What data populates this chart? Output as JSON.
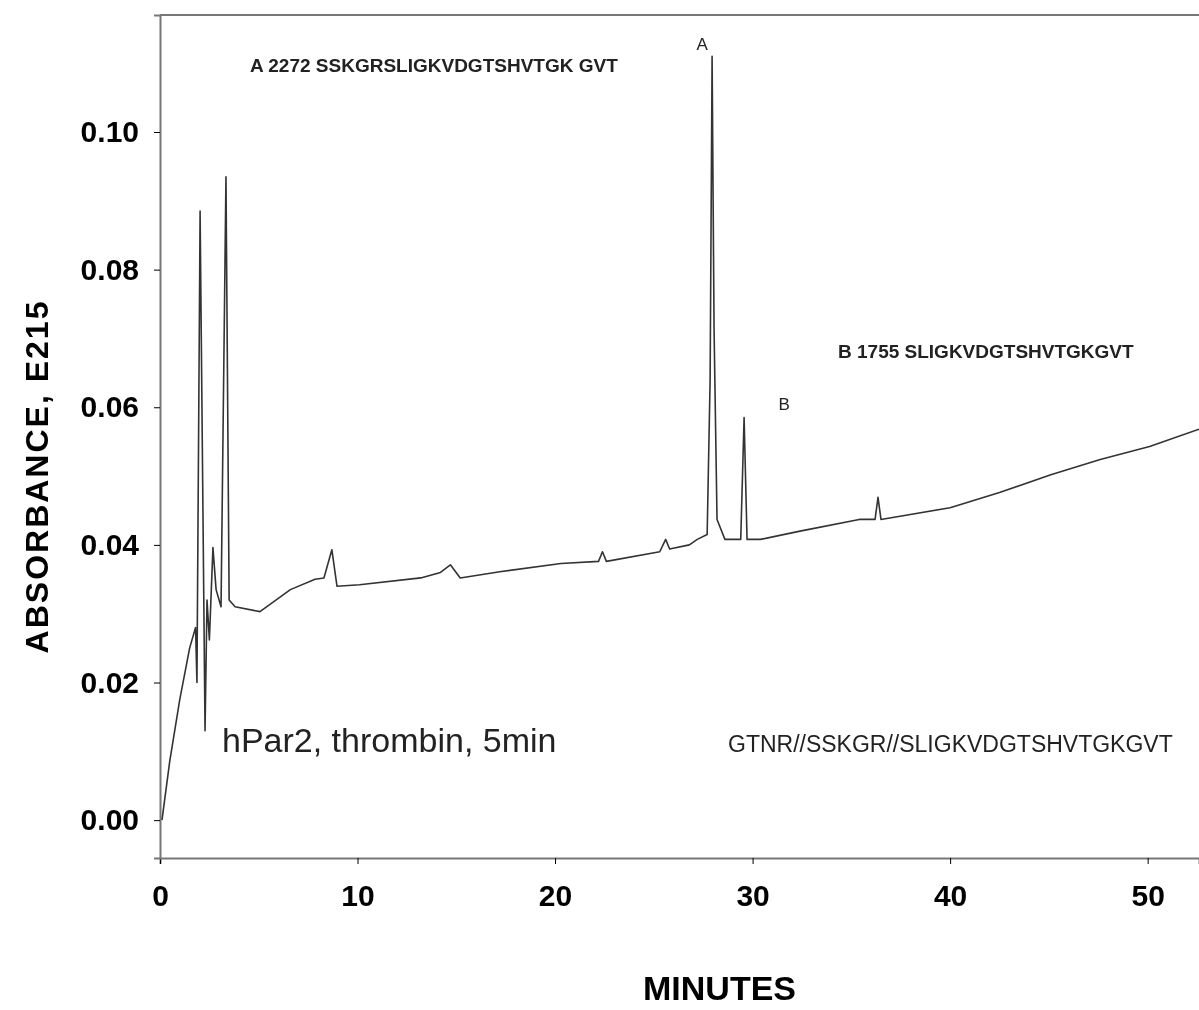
{
  "chart_data": {
    "type": "line",
    "xlabel": "MINUTES",
    "ylabel": "ABSORBANCE, E215",
    "xlim": [
      0,
      52.6
    ],
    "ylim": [
      -0.0055,
      0.117
    ],
    "xticks": [
      0,
      10,
      20,
      30,
      40,
      50
    ],
    "yticks": [
      {
        "value": 0,
        "label": "0.00"
      },
      {
        "value": 0.02,
        "label": "0.02"
      },
      {
        "value": 0.04,
        "label": "0.04"
      },
      {
        "value": 0.06,
        "label": "0.06"
      },
      {
        "value": 0.08,
        "label": "0.08"
      },
      {
        "value": 0.1,
        "label": "0.10"
      }
    ],
    "grid": false,
    "marker": "none",
    "line_style": "solid",
    "series": [
      {
        "color": "#333333",
        "x": [
          0.1,
          0.5,
          1.0,
          1.5,
          1.8,
          1.87,
          2.03,
          2.28,
          2.38,
          2.5,
          2.68,
          2.84,
          3.09,
          3.34,
          3.5,
          3.8,
          5.06,
          6.6,
          7.85,
          8.3,
          8.7,
          8.96,
          10.1,
          13.2,
          14.2,
          14.7,
          15.2,
          17.2,
          20.3,
          22.2,
          22.4,
          22.6,
          25.3,
          25.6,
          25.8,
          26.8,
          27.2,
          27.7,
          27.85,
          27.95,
          28.05,
          28.2,
          28.6,
          29.4,
          29.57,
          29.72,
          30.4,
          32.4,
          35.4,
          36.2,
          36.35,
          36.5,
          40.0,
          42.5,
          45.1,
          47.6,
          50.1,
          52.6
        ],
        "values": [
          0.0,
          0.0087,
          0.0175,
          0.025,
          0.028,
          0.02,
          0.0885,
          0.013,
          0.032,
          0.0262,
          0.0396,
          0.0335,
          0.031,
          0.0935,
          0.032,
          0.031,
          0.0303,
          0.0335,
          0.035,
          0.0352,
          0.0393,
          0.034,
          0.0342,
          0.0352,
          0.036,
          0.0371,
          0.0352,
          0.0361,
          0.0373,
          0.0376,
          0.039,
          0.0376,
          0.039,
          0.0408,
          0.0394,
          0.04,
          0.0408,
          0.0415,
          0.064,
          0.111,
          0.0713,
          0.0437,
          0.0408,
          0.0408,
          0.0585,
          0.0408,
          0.0408,
          0.042,
          0.0437,
          0.0437,
          0.0469,
          0.0437,
          0.0454,
          0.0476,
          0.0502,
          0.0524,
          0.0543,
          0.0568
        ]
      }
    ],
    "annotations": [
      {
        "text": "A",
        "x": 27.95,
        "y": 0.111
      },
      {
        "text": "B",
        "x": 29.57,
        "y": 0.0585
      },
      "A  2272  SSKGRSLIGKVDGTSHVTGK GVT",
      "B  1755  SLIGKVDGTSHVTGKGVT",
      "hPar2, thrombin, 5min",
      "GTNR//SSKGR//SLIGKVDGTSHVTGKGVT"
    ]
  }
}
